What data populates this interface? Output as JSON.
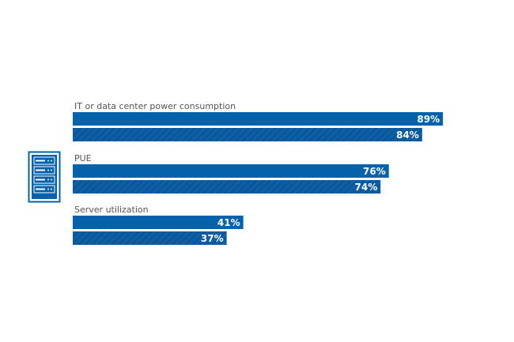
{
  "chart_data": {
    "type": "bar",
    "orientation": "horizontal",
    "xlim": [
      0,
      100
    ],
    "colors": {
      "bar": "#0462ab",
      "hatch": "#1a4f8c"
    },
    "groups": [
      {
        "label": "IT or data center power consumption",
        "values": [
          89,
          84
        ],
        "value_labels": [
          "89%",
          "84%"
        ]
      },
      {
        "label": "PUE",
        "values": [
          76,
          74
        ],
        "value_labels": [
          "76%",
          "74%"
        ]
      },
      {
        "label": "Server utilization",
        "values": [
          41,
          37
        ],
        "value_labels": [
          "41%",
          "37%"
        ]
      }
    ],
    "series_styles": [
      "solid",
      "hatched"
    ],
    "icon": "server-rack-icon"
  }
}
